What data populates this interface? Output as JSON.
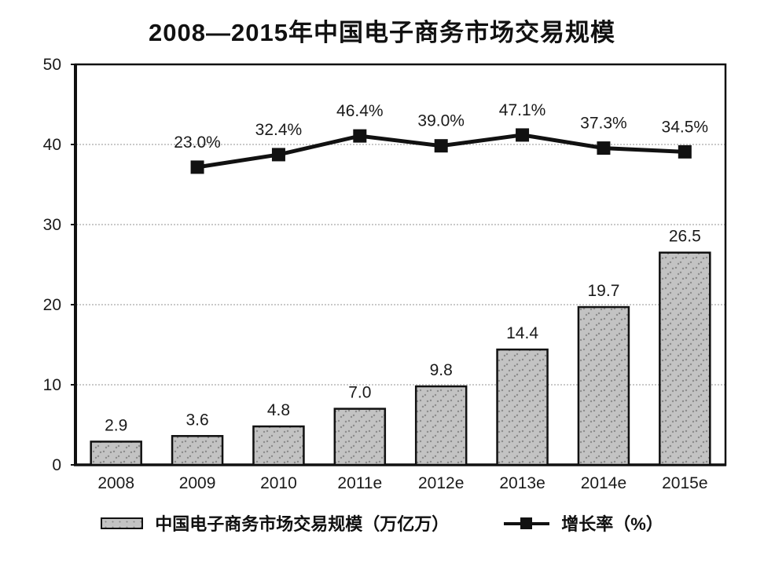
{
  "chart_data": {
    "type": "bar",
    "title": "2008—2015年中国电子商务市场交易规模",
    "categories": [
      "2008",
      "2009",
      "2010",
      "2011e",
      "2012e",
      "2013e",
      "2014e",
      "2015e"
    ],
    "series": [
      {
        "name": "中国电子商务市场交易规模（万亿万）",
        "type": "bar",
        "values": [
          2.9,
          3.6,
          4.8,
          7.0,
          9.8,
          14.4,
          19.7,
          26.5
        ],
        "value_labels": [
          "2.9",
          "3.6",
          "4.8",
          "7.0",
          "9.8",
          "14.4",
          "19.7",
          "26.5"
        ]
      },
      {
        "name": "增长率（%）",
        "type": "line",
        "values": [
          null,
          23.0,
          32.4,
          46.4,
          39.0,
          47.1,
          37.3,
          34.5
        ],
        "value_labels": [
          "",
          "23.0%",
          "32.4%",
          "46.4%",
          "39.0%",
          "47.1%",
          "37.3%",
          "34.5%"
        ]
      }
    ],
    "xlabel": "",
    "ylabel": "",
    "ylim": [
      0,
      50
    ],
    "yticks": [
      0,
      10,
      20,
      30,
      40,
      50
    ],
    "secondary_ylim": [
      -200,
      100
    ],
    "grid": true,
    "legend_position": "bottom",
    "colors": {
      "background": "#ffffff",
      "text": "#1a1a1a",
      "axis": "#111111",
      "grid": "#c9c9c9",
      "bar_fill": "#c3c3c3",
      "bar_speckle": "#8b8b8b",
      "bar_border": "#111111",
      "line": "#111111"
    }
  }
}
